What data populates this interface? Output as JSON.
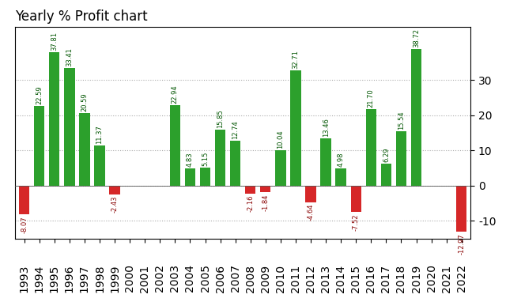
{
  "chart_data": {
    "type": "bar",
    "title": "Yearly % Profit chart",
    "categories": [
      "1993",
      "1994",
      "1995",
      "1996",
      "1997",
      "1998",
      "1999",
      "2000",
      "2001",
      "2002",
      "2003",
      "2004",
      "2005",
      "2006",
      "2007",
      "2008",
      "2009",
      "2010",
      "2011",
      "2012",
      "2013",
      "2014",
      "2015",
      "2016",
      "2017",
      "2018",
      "2019",
      "2020",
      "2021",
      "2022"
    ],
    "values": [
      -8.07,
      22.59,
      37.81,
      33.41,
      20.59,
      11.37,
      -2.43,
      0.0,
      0.0,
      0.0,
      22.94,
      4.83,
      5.15,
      15.85,
      12.74,
      -2.16,
      -1.84,
      10.04,
      32.71,
      -4.64,
      13.46,
      4.98,
      -7.52,
      21.7,
      6.29,
      15.54,
      38.72,
      0.0,
      0.0,
      -12.97
    ],
    "value_labels": [
      "-8.07",
      "22.59",
      "37.81",
      "33.41",
      "20.59",
      "11.37",
      "-2.43",
      null,
      null,
      null,
      "22.94",
      "4.83",
      "5.15",
      "15.85",
      "12.74",
      "-2.16",
      "-1.84",
      "10.04",
      "32.71",
      "-4.64",
      "13.46",
      "4.98",
      "-7.52",
      "21.70",
      "6.29",
      "15.54",
      "38.72",
      null,
      null,
      "-12.97"
    ],
    "colors": [
      "#d62728",
      "#2ca02c",
      "#2ca02c",
      "#2ca02c",
      "#2ca02c",
      "#2ca02c",
      "#d62728",
      "#2ca02c",
      "#2ca02c",
      "#2ca02c",
      "#2ca02c",
      "#2ca02c",
      "#2ca02c",
      "#2ca02c",
      "#2ca02c",
      "#d62728",
      "#d62728",
      "#2ca02c",
      "#2ca02c",
      "#d62728",
      "#2ca02c",
      "#2ca02c",
      "#d62728",
      "#2ca02c",
      "#2ca02c",
      "#2ca02c",
      "#2ca02c",
      "#2ca02c",
      "#2ca02c",
      "#d62728"
    ],
    "ylim": [
      -15,
      45
    ],
    "yticks": [
      -10,
      0,
      10,
      20,
      30
    ],
    "grid": true,
    "data_labels": true
  }
}
